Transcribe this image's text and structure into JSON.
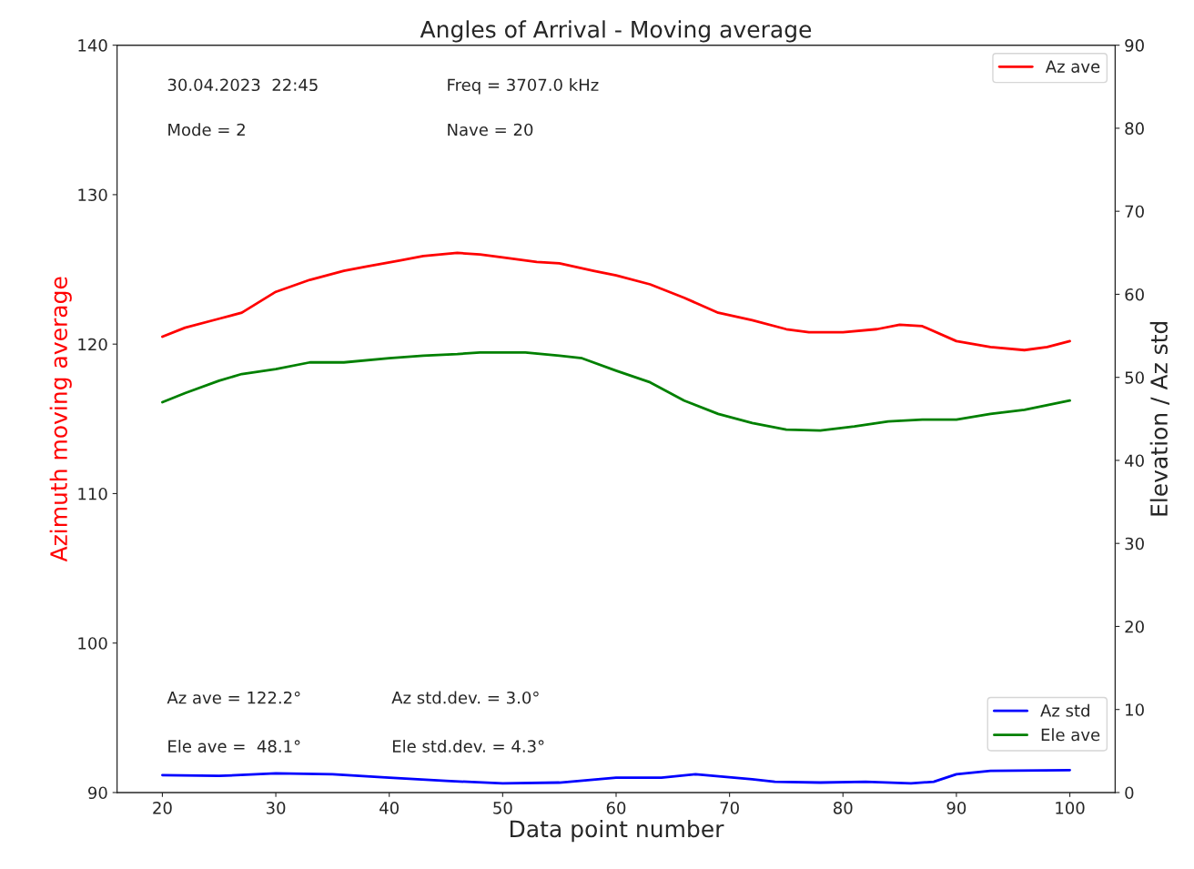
{
  "chart_data": {
    "type": "line",
    "title": "Angles of Arrival - Moving average",
    "xlabel": "Data point number",
    "ylabel": "Azimuth moving average",
    "y2label": "Elevation / Az std",
    "xlim": [
      16,
      104
    ],
    "xticks": [
      20,
      30,
      40,
      50,
      60,
      70,
      80,
      90,
      100
    ],
    "ylim": [
      90,
      140
    ],
    "yticks": [
      90,
      100,
      110,
      120,
      130,
      140
    ],
    "y2lim": [
      0,
      90
    ],
    "y2ticks": [
      0,
      10,
      20,
      30,
      40,
      50,
      60,
      70,
      80,
      90
    ],
    "grid": false,
    "legend": "right",
    "marker": "none",
    "line_style": "solid",
    "annotations": [
      "30.04.2023  22:45",
      "Freq = 3707.0 kHz",
      "Mode = 2",
      "Nave = 20",
      "Az ave = 122.2°",
      "Az std.dev. = 3.0°",
      "Ele ave =  48.1°",
      "Ele std.dev. = 4.3°"
    ],
    "series": [
      {
        "name": "Az ave",
        "color": "#ff0000",
        "axis": "y",
        "x": [
          20,
          22,
          25,
          27,
          30,
          33,
          36,
          38,
          41,
          43,
          46,
          48,
          50,
          53,
          55,
          58,
          60,
          63,
          66,
          69,
          72,
          75,
          77,
          80,
          83,
          85,
          87,
          90,
          93,
          96,
          98,
          100
        ],
        "values": [
          120.5,
          121.1,
          121.7,
          122.1,
          123.5,
          124.3,
          124.9,
          125.2,
          125.6,
          125.9,
          126.1,
          126.0,
          125.8,
          125.5,
          125.4,
          124.9,
          124.6,
          124.0,
          123.1,
          122.1,
          121.6,
          121.0,
          120.8,
          120.8,
          121.0,
          121.3,
          121.2,
          120.2,
          119.8,
          119.6,
          119.8,
          120.2
        ]
      },
      {
        "name": "Az std",
        "color": "#0000ff",
        "axis": "y2",
        "x": [
          20,
          25,
          30,
          35,
          40,
          45,
          50,
          55,
          60,
          64,
          67,
          72,
          74,
          78,
          82,
          86,
          88,
          90,
          93,
          100
        ],
        "values": [
          2.1,
          2.0,
          2.3,
          2.2,
          1.8,
          1.4,
          1.1,
          1.2,
          1.8,
          1.8,
          2.2,
          1.6,
          1.3,
          1.2,
          1.3,
          1.1,
          1.3,
          2.2,
          2.6,
          2.7
        ]
      },
      {
        "name": "Ele ave",
        "color": "#008000",
        "axis": "y2",
        "x": [
          20,
          22,
          25,
          27,
          30,
          33,
          36,
          40,
          43,
          46,
          48,
          52,
          55,
          57,
          60,
          63,
          66,
          69,
          72,
          75,
          78,
          81,
          84,
          87,
          90,
          93,
          96,
          100
        ],
        "values": [
          47.0,
          48.1,
          49.6,
          50.4,
          51.0,
          51.8,
          51.8,
          52.3,
          52.6,
          52.8,
          53.0,
          53.0,
          52.6,
          52.3,
          50.8,
          49.4,
          47.2,
          45.6,
          44.5,
          43.7,
          43.6,
          44.1,
          44.7,
          44.9,
          44.9,
          45.6,
          46.1,
          47.2
        ]
      }
    ]
  }
}
